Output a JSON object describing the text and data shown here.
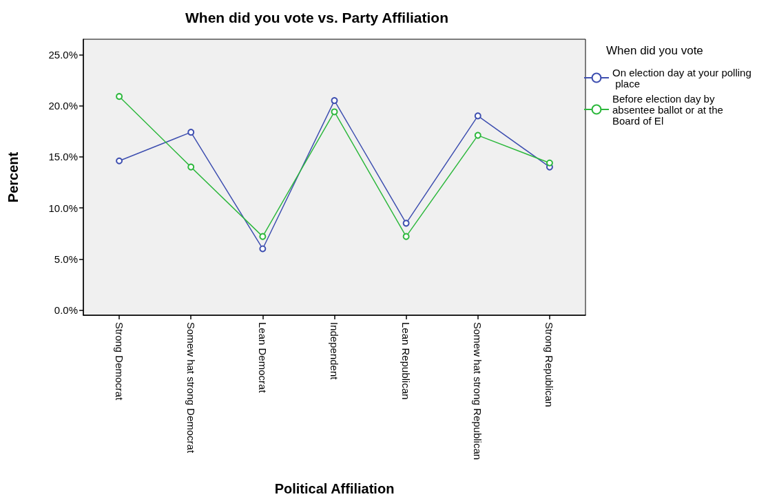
{
  "chart_data": {
    "type": "line",
    "title": "When did you vote vs. Party Affiliation",
    "xlabel": "Political Affiliation",
    "ylabel": "Percent",
    "legend_title": "When did you vote",
    "categories": [
      "Strong Democrat",
      "Somew hat strong Democrat",
      "Lean Democrat",
      "Independent",
      "Lean Republican",
      "Somew hat strong Republican",
      "Strong Republican"
    ],
    "series": [
      {
        "name": "On election day at your polling place",
        "color": "#3e4fb0",
        "values": [
          14.6,
          17.4,
          6.0,
          20.5,
          8.5,
          19.0,
          14.0
        ]
      },
      {
        "name": "Before election day by absentee ballot or at the Board of El",
        "color": "#2db83d",
        "values": [
          20.9,
          14.0,
          7.2,
          19.4,
          7.2,
          17.1,
          14.4
        ]
      }
    ],
    "ylim": [
      -0.5,
      26.5
    ],
    "yticks": [
      {
        "value": 0,
        "label": "0.0%"
      },
      {
        "value": 5,
        "label": "5.0%"
      },
      {
        "value": 10,
        "label": "10.0%"
      },
      {
        "value": 15,
        "label": "15.0%"
      },
      {
        "value": 20,
        "label": "20.0%"
      },
      {
        "value": 25,
        "label": "25.0%"
      }
    ],
    "grid": false,
    "legend": "right",
    "marker": "circle",
    "line_style": "solid"
  }
}
